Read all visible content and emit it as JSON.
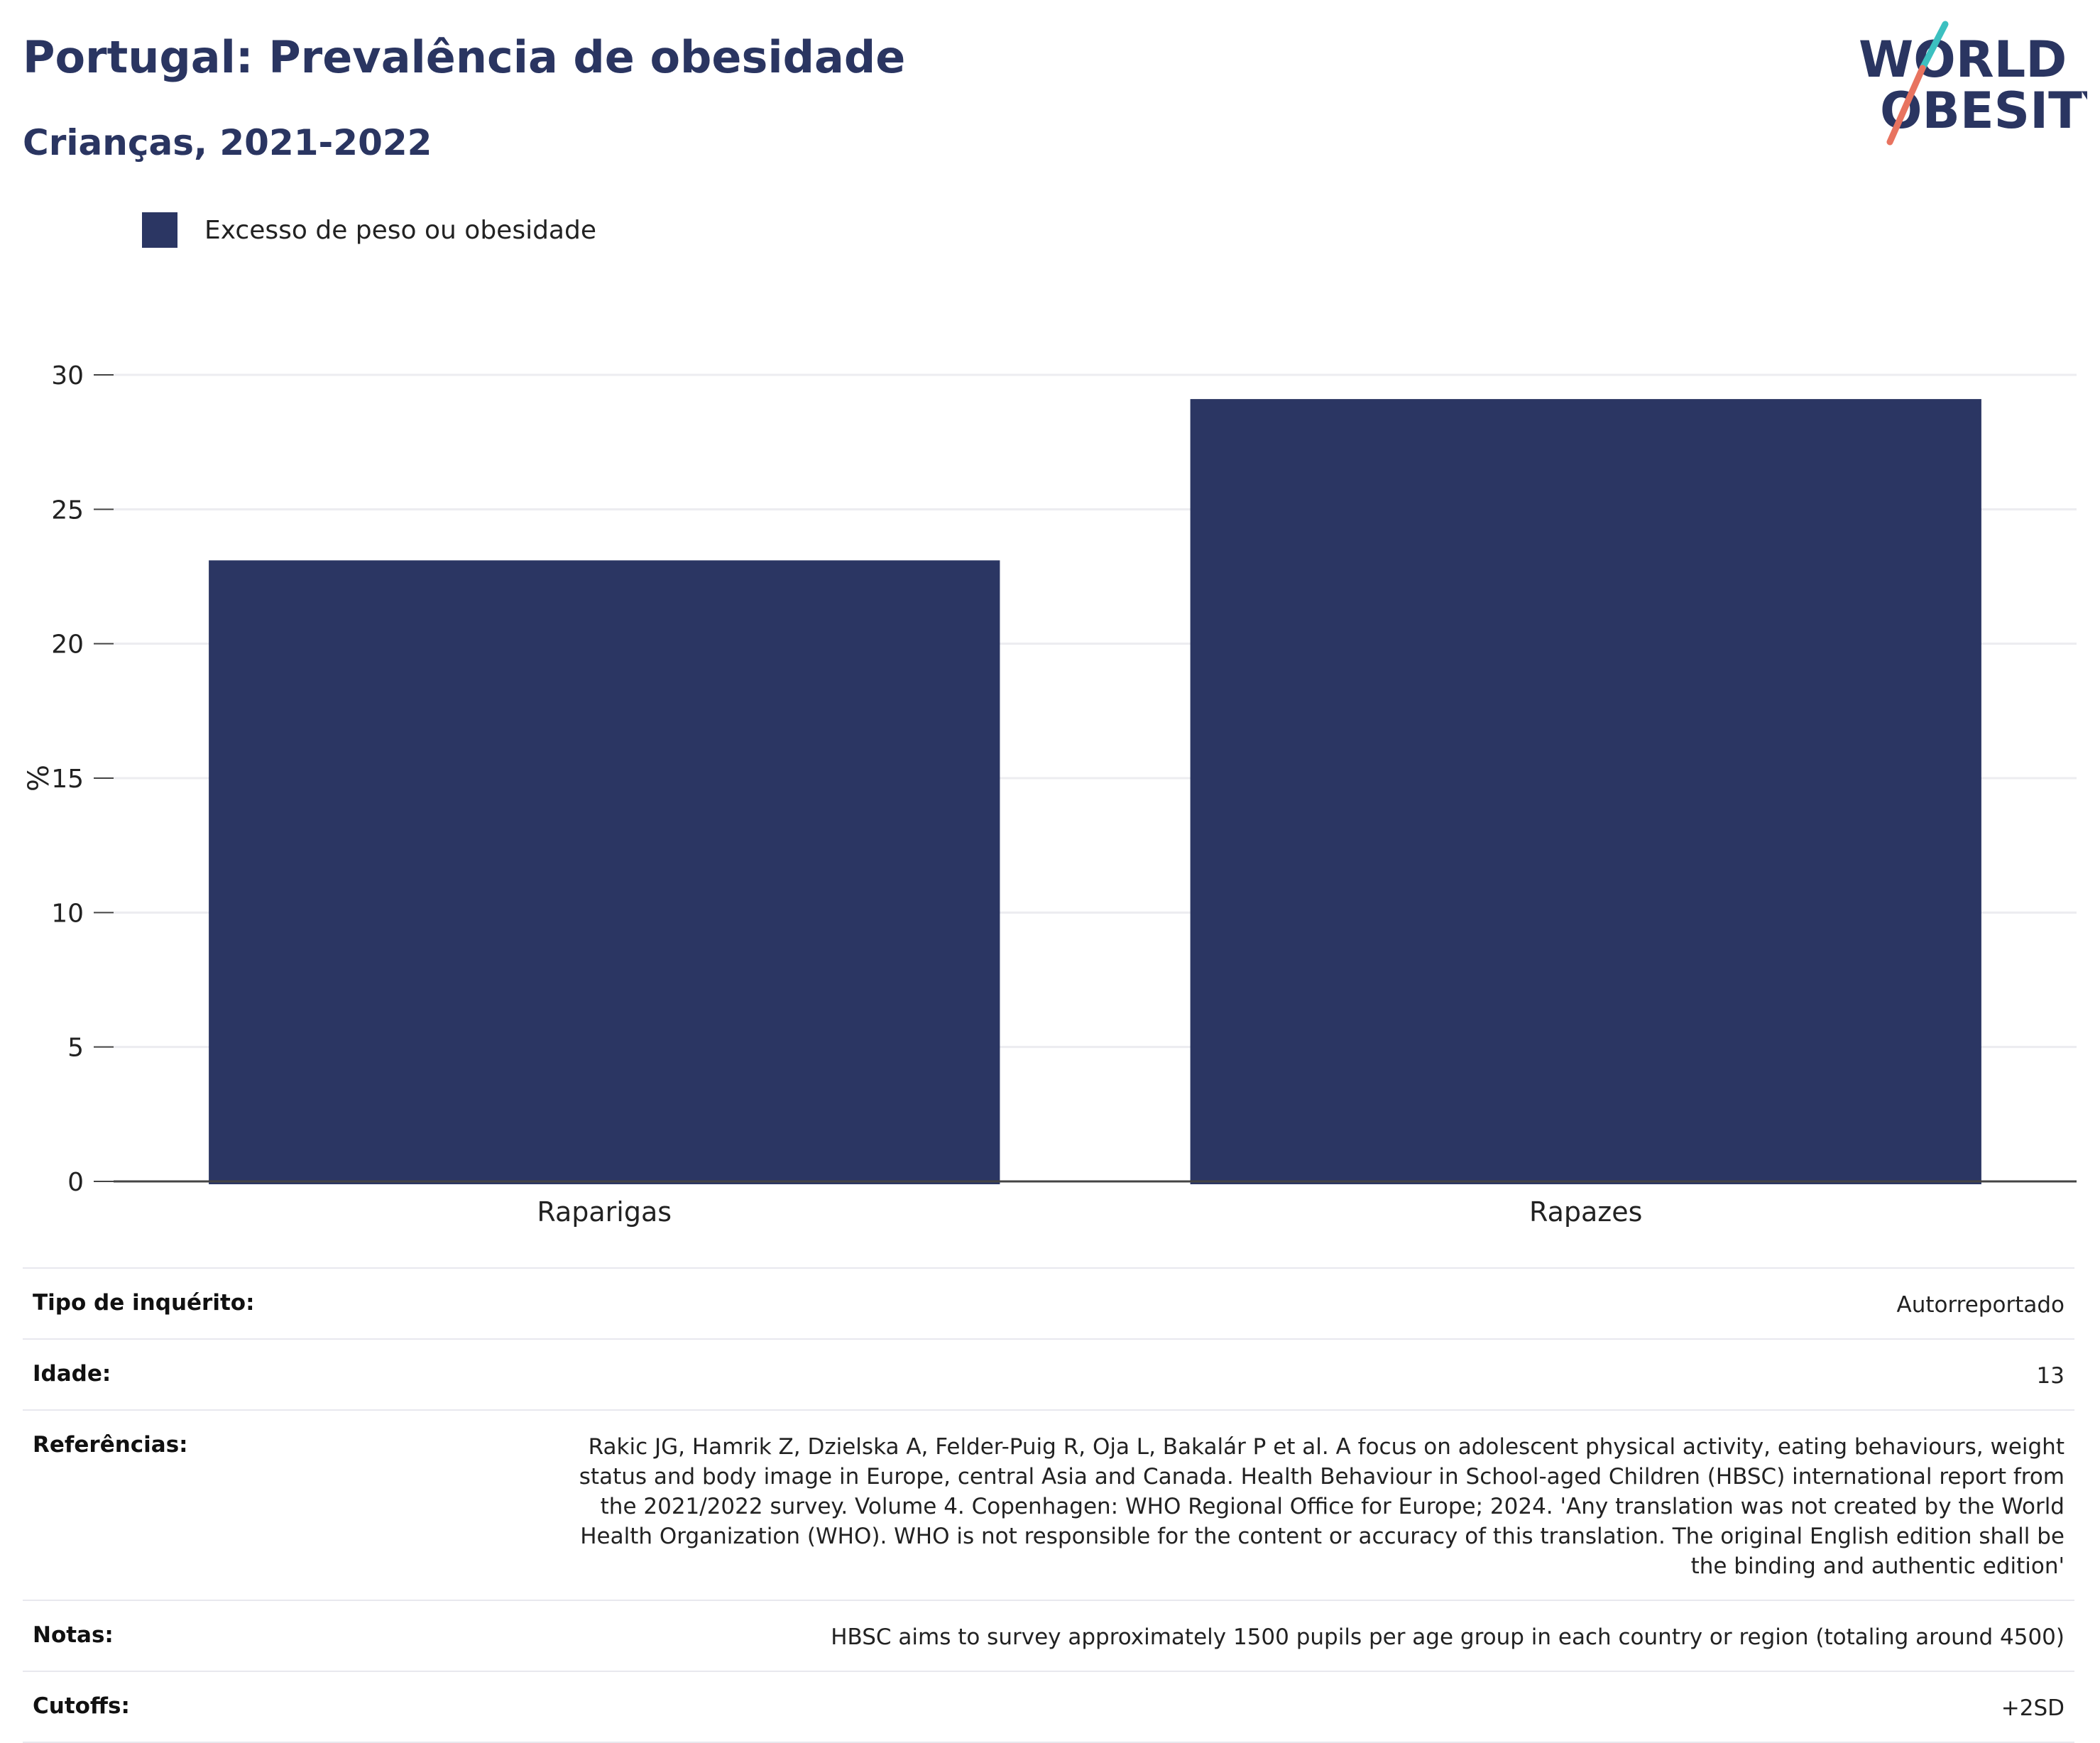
{
  "header": {
    "title": "Portugal: Prevalência de obesidade",
    "subtitle": "Crianças, 2021-2022"
  },
  "logo": {
    "line1": "WORLD",
    "line2": "OBESITY",
    "slash_colors": [
      "#3cc0c0",
      "#e8735f"
    ],
    "text_color": "#2a3561"
  },
  "legend": {
    "items": [
      {
        "label": "Excesso de peso ou obesidade",
        "color": "#2b3663"
      }
    ]
  },
  "chart_data": {
    "type": "bar",
    "categories": [
      "Raparigas",
      "Rapazes"
    ],
    "series": [
      {
        "name": "Excesso de peso ou obesidade",
        "values": [
          23.1,
          29.1
        ],
        "color": "#2b3663"
      }
    ],
    "ylabel": "%",
    "xlabel": "",
    "ylim": [
      0,
      30
    ],
    "yticks": [
      0,
      5,
      10,
      15,
      20,
      25,
      30
    ],
    "grid": true,
    "legend_position": "top-left"
  },
  "info": {
    "rows": [
      {
        "label": "Tipo de inquérito:",
        "value": "Autorreportado"
      },
      {
        "label": "Idade:",
        "value": "13"
      },
      {
        "label": "Referências:",
        "value": "Rakic JG, Hamrik Z, Dzielska A, Felder-Puig R, Oja L, Bakalár P et al. A focus on adolescent physical activity, eating behaviours, weight status and body image in Europe, central Asia and Canada. Health Behaviour in School-aged Children (HBSC) international report from the 2021/2022 survey. Volume 4. Copenhagen: WHO Regional Office for Europe; 2024. 'Any translation was not created by the World Health Organization (WHO). WHO is not responsible for the content or accuracy of this translation. The original English edition shall be the binding and authentic edition'"
      },
      {
        "label": "Notas:",
        "value": "HBSC aims to survey approximately 1500 pupils per age group in each country or region (totaling around 4500)"
      },
      {
        "label": "Cutoffs:",
        "value": "+2SD"
      }
    ]
  }
}
